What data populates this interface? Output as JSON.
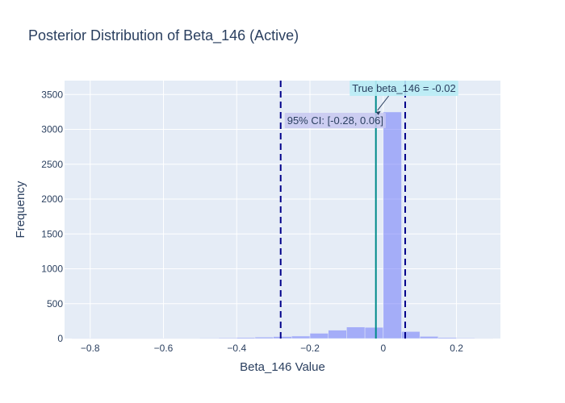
{
  "chart_data": {
    "type": "histogram",
    "title": "Posterior Distribution of Beta_146 (Active)",
    "xlabel": "Beta_146 Value",
    "ylabel": "Frequency",
    "xlim": [
      -0.87,
      0.32
    ],
    "ylim": [
      0,
      3700
    ],
    "x_ticks": [
      -0.8,
      -0.6,
      -0.4,
      -0.2,
      0,
      0.2
    ],
    "x_tick_labels": [
      "−0.8",
      "−0.6",
      "−0.4",
      "−0.2",
      "0",
      "0.2"
    ],
    "y_ticks": [
      0,
      500,
      1000,
      1500,
      2000,
      2500,
      3000,
      3500
    ],
    "y_tick_labels": [
      "0",
      "500",
      "1000",
      "1500",
      "2000",
      "2500",
      "3000",
      "3500"
    ],
    "grid": true,
    "bin_width": 0.05,
    "bins": [
      {
        "x0": -0.85,
        "x1": -0.8,
        "count": 1
      },
      {
        "x0": -0.8,
        "x1": -0.75,
        "count": 1
      },
      {
        "x0": -0.75,
        "x1": -0.7,
        "count": 1
      },
      {
        "x0": -0.7,
        "x1": -0.65,
        "count": 2
      },
      {
        "x0": -0.65,
        "x1": -0.6,
        "count": 2
      },
      {
        "x0": -0.6,
        "x1": -0.55,
        "count": 3
      },
      {
        "x0": -0.55,
        "x1": -0.5,
        "count": 5
      },
      {
        "x0": -0.5,
        "x1": -0.45,
        "count": 7
      },
      {
        "x0": -0.45,
        "x1": -0.4,
        "count": 10
      },
      {
        "x0": -0.4,
        "x1": -0.35,
        "count": 15
      },
      {
        "x0": -0.35,
        "x1": -0.3,
        "count": 20
      },
      {
        "x0": -0.3,
        "x1": -0.25,
        "count": 28
      },
      {
        "x0": -0.25,
        "x1": -0.2,
        "count": 35
      },
      {
        "x0": -0.2,
        "x1": -0.15,
        "count": 75
      },
      {
        "x0": -0.15,
        "x1": -0.1,
        "count": 120
      },
      {
        "x0": -0.1,
        "x1": -0.05,
        "count": 165
      },
      {
        "x0": -0.05,
        "x1": 0.0,
        "count": 160
      },
      {
        "x0": 0.0,
        "x1": 0.05,
        "count": 3250
      },
      {
        "x0": 0.05,
        "x1": 0.1,
        "count": 100
      },
      {
        "x0": 0.1,
        "x1": 0.15,
        "count": 30
      },
      {
        "x0": 0.15,
        "x1": 0.2,
        "count": 15
      },
      {
        "x0": 0.2,
        "x1": 0.25,
        "count": 8
      },
      {
        "x0": 0.25,
        "x1": 0.3,
        "count": 3
      }
    ],
    "bar_color": "#636efa",
    "true_value": -0.02,
    "true_line_color": "#008b8b",
    "ci": [
      -0.28,
      0.06
    ],
    "ci_line_color": "#00008b",
    "annotations": {
      "true_label": "True beta_146 = -0.02",
      "ci_label": "95% CI: [-0.28, 0.06]"
    }
  }
}
